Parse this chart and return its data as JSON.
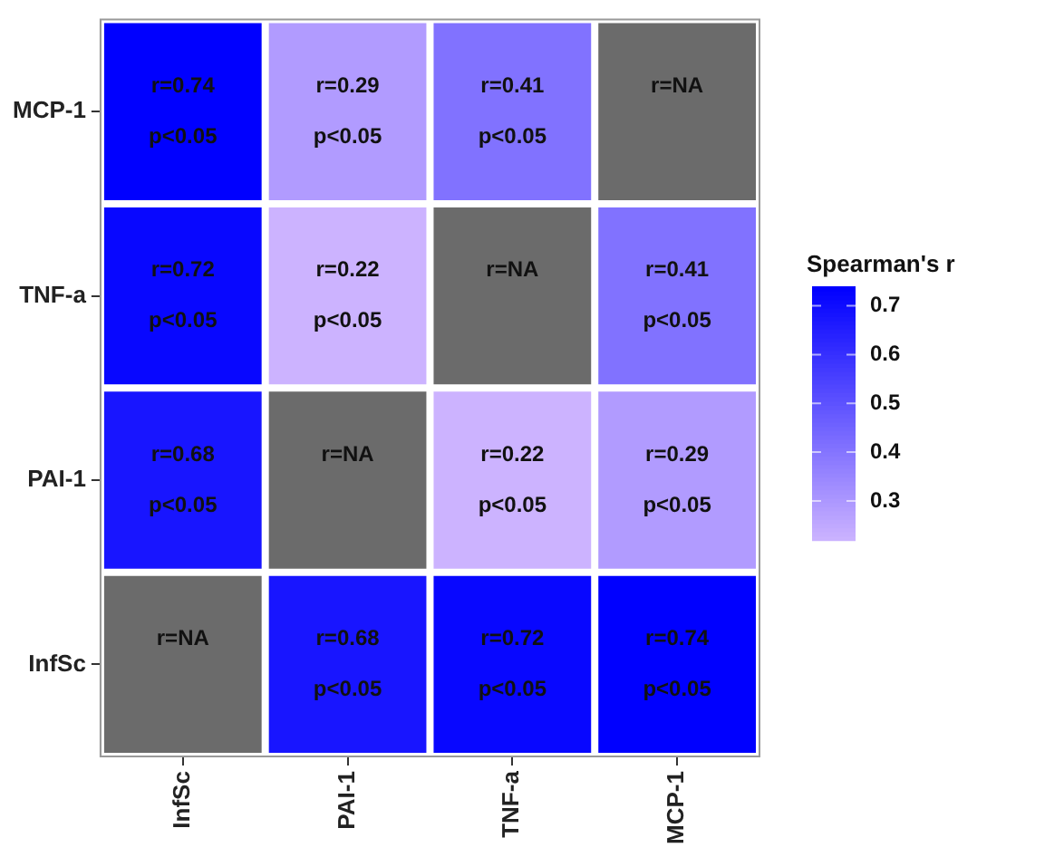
{
  "chart_data": {
    "type": "heatmap",
    "legend_title": "Spearman's r",
    "categories": [
      "InfSc",
      "PAI-1",
      "TNF-a",
      "MCP-1"
    ],
    "y_categories": [
      "MCP-1",
      "TNF-a",
      "PAI-1",
      "InfSc"
    ],
    "cells": [
      [
        0.74,
        0.29,
        0.41,
        null
      ],
      [
        0.72,
        0.22,
        null,
        0.41
      ],
      [
        0.68,
        null,
        0.22,
        0.29
      ],
      [
        null,
        0.68,
        0.72,
        0.74
      ]
    ],
    "cell_labels": [
      [
        "r=0.74\np<0.05",
        "r=0.29\np<0.05",
        "r=0.41\np<0.05",
        "r=NA"
      ],
      [
        "r=0.72\np<0.05",
        "r=0.22\np<0.05",
        "r=NA",
        "r=0.41\np<0.05"
      ],
      [
        "r=0.68\np<0.05",
        "r=NA",
        "r=0.22\np<0.05",
        "r=0.29\np<0.05"
      ],
      [
        "r=NA",
        "r=0.68\np<0.05",
        "r=0.72\np<0.05",
        "r=0.74\np<0.05"
      ]
    ],
    "clim": [
      0.22,
      0.74
    ],
    "cticks": [
      0.3,
      0.4,
      0.5,
      0.6,
      0.7
    ]
  }
}
